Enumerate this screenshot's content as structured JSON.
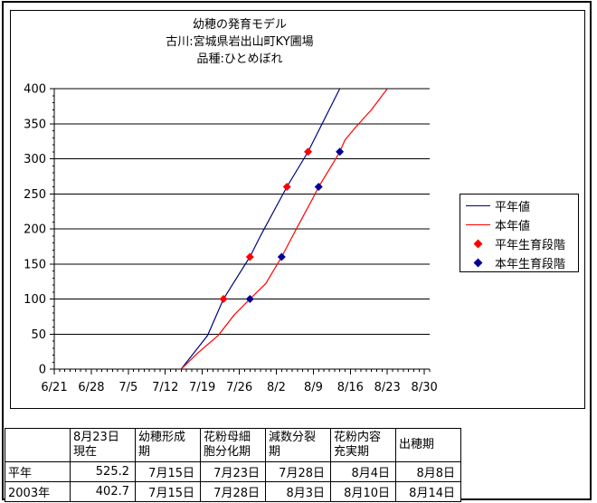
{
  "chart": {
    "title_lines": [
      "幼穂の発育モデル",
      "古川:宮城県岩出山町KY圃場",
      "品種:ひとめぼれ"
    ],
    "legend": {
      "items": [
        {
          "label": "平年値",
          "swatch": "line",
          "color": "#000080"
        },
        {
          "label": "本年値",
          "swatch": "line",
          "color": "#FF0000"
        },
        {
          "label": "平年生育段階",
          "swatch": "diamond",
          "color": "#FF0000"
        },
        {
          "label": "本年生育段階",
          "swatch": "diamond",
          "color": "#000099"
        }
      ]
    }
  },
  "chart_data": {
    "type": "line",
    "title": "幼穂の発育モデル 古川:宮城県岩出山町KY圃場 品種:ひとめぼれ",
    "xlabel": "",
    "ylabel": "",
    "grid": "horizontal-only",
    "legend_position": "right",
    "x_axis": {
      "kind": "date",
      "start": "6/21",
      "end": "8/31",
      "major_tick_labels": [
        "6/21",
        "6/28",
        "7/5",
        "7/12",
        "7/19",
        "7/26",
        "8/2",
        "8/9",
        "8/16",
        "8/23",
        "8/30"
      ],
      "major_tick_interval_days": 7,
      "minor_tick_interval_days": 1
    },
    "y_axis": {
      "min": 0,
      "max": 400,
      "major_tick_interval": 50,
      "minor_tick_interval": 10,
      "major_tick_labels": [
        "0",
        "50",
        "100",
        "150",
        "200",
        "250",
        "300",
        "350",
        "400"
      ]
    },
    "series": [
      {
        "name": "平年値",
        "type": "line",
        "color": "#000080",
        "points": [
          [
            "7/15",
            0
          ],
          [
            "7/20",
            48
          ],
          [
            "7/23",
            100
          ],
          [
            "7/28",
            160
          ],
          [
            "7/30",
            190
          ],
          [
            "8/4",
            260
          ],
          [
            "8/8",
            310
          ],
          [
            "8/12",
            370
          ],
          [
            "8/14",
            400
          ]
        ]
      },
      {
        "name": "本年値",
        "type": "line",
        "color": "#FF0000",
        "points": [
          [
            "7/15",
            0
          ],
          [
            "7/18",
            22
          ],
          [
            "7/22",
            48
          ],
          [
            "7/25",
            77
          ],
          [
            "7/28",
            100
          ],
          [
            "7/31",
            122
          ],
          [
            "8/3",
            160
          ],
          [
            "8/6",
            203
          ],
          [
            "8/9",
            245
          ],
          [
            "8/10",
            260
          ],
          [
            "8/13",
            297
          ],
          [
            "8/14",
            310
          ],
          [
            "8/15",
            327
          ],
          [
            "8/17",
            345
          ],
          [
            "8/20",
            370
          ],
          [
            "8/23",
            400
          ]
        ]
      },
      {
        "name": "平年生育段階",
        "type": "scatter",
        "marker": "diamond",
        "color": "#FF0000",
        "points": [
          [
            "7/23",
            100
          ],
          [
            "7/28",
            160
          ],
          [
            "8/4",
            260
          ],
          [
            "8/8",
            310
          ]
        ]
      },
      {
        "name": "本年生育段階",
        "type": "scatter",
        "marker": "diamond",
        "color": "#000099",
        "points": [
          [
            "7/28",
            100
          ],
          [
            "8/3",
            160
          ],
          [
            "8/10",
            260
          ],
          [
            "8/14",
            310
          ]
        ]
      }
    ]
  },
  "table": {
    "headers": [
      "",
      "8月23日\n現在",
      "幼穂形成\n期",
      "花粉母細\n胞分化期",
      "減数分裂\n期",
      "花粉内容\n充実期",
      "出穂期"
    ],
    "rows": [
      {
        "label": "平年",
        "values": [
          "525.2",
          "7月15日",
          "7月23日",
          "7月28日",
          "8月4日",
          "8月8日"
        ]
      },
      {
        "label": "2003年",
        "values": [
          "402.7",
          "7月15日",
          "7月28日",
          "8月3日",
          "8月10日",
          "8月14日"
        ]
      }
    ]
  }
}
